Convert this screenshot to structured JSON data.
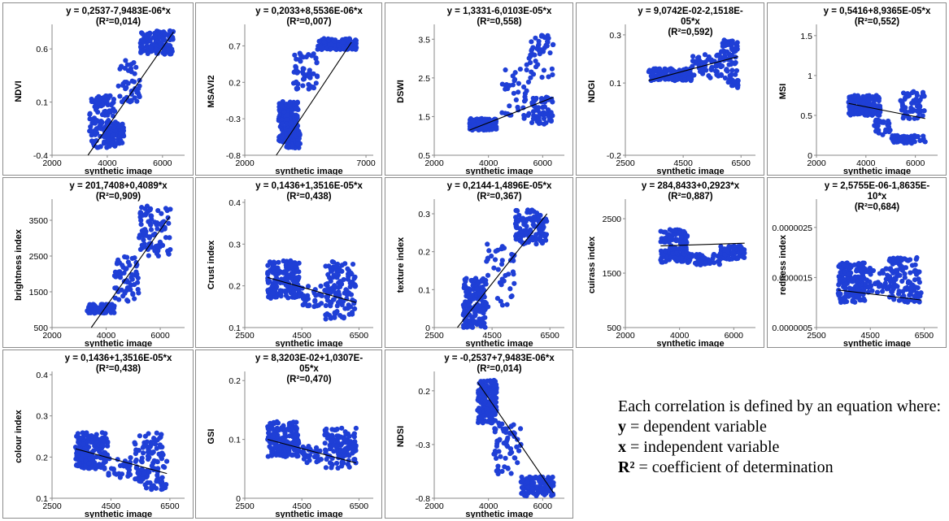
{
  "legend": {
    "intro": "Each correlation is defined by an equation where:",
    "items": [
      {
        "sym": "y",
        "text": " = dependent variable"
      },
      {
        "sym": "x",
        "text": " = independent variable"
      },
      {
        "sym": "R²",
        "text": " = coefficient of determination"
      }
    ]
  },
  "colors": {
    "points": "#1f3fd6",
    "line": "#000000",
    "border": "#8c8c8c"
  },
  "chart_data": [
    {
      "type": "scatter",
      "ylabel": "NDVI",
      "xlabel": "synthetic image",
      "equation": "y = 0,2537-7,9483E-06*x\n(R²=0,014)",
      "xticks": [
        2000,
        4000,
        6000
      ],
      "yticks": [
        -0.4,
        0.1,
        0.6
      ],
      "xlim": [
        2000,
        6800
      ],
      "ylim": [
        -0.4,
        0.8
      ],
      "fit": [
        [
          3300,
          -0.4
        ],
        [
          6400,
          0.76
        ]
      ],
      "clusters": [
        [
          3350,
          4300,
          -0.33,
          0.16,
          140
        ],
        [
          4000,
          4600,
          -0.3,
          -0.1,
          80
        ],
        [
          4400,
          5200,
          0.1,
          0.5,
          45
        ],
        [
          5200,
          6400,
          0.55,
          0.77,
          130
        ]
      ]
    },
    {
      "type": "scatter",
      "ylabel": "MSAVI2",
      "xlabel": "synthetic image",
      "equation": "y = 0,2033+8,5536E-06*x\n(R²=0,007)",
      "xticks": [
        2000,
        7000
      ],
      "yticks": [
        -0.8,
        -0.3,
        0.2,
        0.7
      ],
      "xlim": [
        2000,
        7300
      ],
      "ylim": [
        -0.8,
        0.95
      ],
      "fit": [
        [
          3300,
          -0.8
        ],
        [
          6400,
          0.75
        ]
      ],
      "clusters": [
        [
          3400,
          4200,
          -0.62,
          -0.05,
          170
        ],
        [
          3700,
          4300,
          -0.7,
          -0.45,
          60
        ],
        [
          4000,
          5000,
          0.1,
          0.6,
          55
        ],
        [
          5000,
          6600,
          0.65,
          0.8,
          130
        ]
      ]
    },
    {
      "type": "scatter",
      "ylabel": "DSWI",
      "xlabel": "synthetic image",
      "equation": "y = 1,3331-6,0103E-05*x\n(R²=0,558)",
      "xticks": [
        2000,
        4000,
        6000
      ],
      "yticks": [
        0.5,
        1.5,
        2.5,
        3.5
      ],
      "xlim": [
        2000,
        6800
      ],
      "ylim": [
        0.5,
        3.8
      ],
      "fit": [
        [
          3300,
          1.15
        ],
        [
          6400,
          2.0
        ]
      ],
      "clusters": [
        [
          3300,
          4300,
          1.15,
          1.45,
          170
        ],
        [
          4500,
          5600,
          1.4,
          2.9,
          40
        ],
        [
          5500,
          6400,
          2.5,
          3.6,
          45
        ],
        [
          5600,
          6400,
          1.3,
          2.0,
          60
        ]
      ]
    },
    {
      "type": "scatter",
      "ylabel": "NDGI",
      "xlabel": "synthetic image",
      "equation": "y = 9,0742E-02-2,1518E-\n05*x\n(R²=0,592)",
      "xticks": [
        2500,
        4500,
        6500
      ],
      "yticks": [
        -0.2,
        0.1,
        0.3
      ],
      "xlim": [
        2500,
        7000
      ],
      "ylim": [
        -0.2,
        0.33
      ],
      "fit": [
        [
          3300,
          0.11
        ],
        [
          6400,
          0.21
        ]
      ],
      "clusters": [
        [
          3300,
          4800,
          0.11,
          0.16,
          150
        ],
        [
          4800,
          5800,
          0.12,
          0.22,
          50
        ],
        [
          5800,
          6400,
          0.08,
          0.28,
          80
        ]
      ]
    },
    {
      "type": "scatter",
      "ylabel": "MSI",
      "xlabel": "synthetic image",
      "equation": "y = 0,5416+8,9365E-05*x\n(R²=0,552)",
      "xticks": [
        2000,
        4000,
        6000
      ],
      "yticks": [
        0,
        0.5,
        1,
        1.5
      ],
      "xlim": [
        2000,
        6900
      ],
      "ylim": [
        0,
        1.6
      ],
      "fit": [
        [
          3300,
          0.65
        ],
        [
          6400,
          0.46
        ]
      ],
      "clusters": [
        [
          3300,
          4600,
          0.5,
          0.75,
          150
        ],
        [
          4300,
          5000,
          0.25,
          0.45,
          25
        ],
        [
          5000,
          6400,
          0.15,
          0.25,
          50
        ],
        [
          5400,
          6400,
          0.45,
          0.8,
          60
        ]
      ]
    },
    {
      "type": "scatter",
      "ylabel": "brightness index",
      "xlabel": "synthetic image",
      "equation": "y = 201,7408+0,4089*x\n(R²=0,909)",
      "xticks": [
        2000,
        4000,
        6000
      ],
      "yticks": [
        500,
        1500,
        2500,
        3500
      ],
      "xlim": [
        2000,
        6900
      ],
      "ylim": [
        500,
        4000
      ],
      "fit": [
        [
          3450,
          500
        ],
        [
          6350,
          3600
        ]
      ],
      "clusters": [
        [
          3300,
          4300,
          900,
          1150,
          100
        ],
        [
          4300,
          5200,
          1200,
          2500,
          60
        ],
        [
          5200,
          6400,
          2500,
          3900,
          90
        ]
      ]
    },
    {
      "type": "scatter",
      "ylabel": "Crust index",
      "xlabel": "synthetic image",
      "equation": "y = 0,1436+1,3516E-05*x\n(R²=0,438)",
      "xticks": [
        2500,
        4500,
        6500
      ],
      "yticks": [
        0.1,
        0.2,
        0.3,
        0.4
      ],
      "xlim": [
        2500,
        7000
      ],
      "ylim": [
        0.1,
        0.4
      ],
      "fit": [
        [
          3300,
          0.22
        ],
        [
          6400,
          0.16
        ]
      ],
      "clusters": [
        [
          3300,
          4400,
          0.17,
          0.26,
          170
        ],
        [
          4400,
          5200,
          0.15,
          0.2,
          30
        ],
        [
          5300,
          6400,
          0.12,
          0.26,
          120
        ]
      ]
    },
    {
      "type": "scatter",
      "ylabel": "texture index",
      "xlabel": "synthetic image",
      "equation": "y = 0,2144-1,4896E-05*x\n(R²=0,367)",
      "xticks": [
        2500,
        4500,
        6500
      ],
      "yticks": [
        0,
        0.1,
        0.2,
        0.3
      ],
      "xlim": [
        2500,
        7000
      ],
      "ylim": [
        0,
        0.33
      ],
      "fit": [
        [
          3300,
          0
        ],
        [
          6400,
          0.3
        ]
      ],
      "clusters": [
        [
          3500,
          4300,
          0.0,
          0.13,
          160
        ],
        [
          4300,
          5300,
          0.05,
          0.22,
          40
        ],
        [
          5300,
          6400,
          0.22,
          0.31,
          110
        ]
      ]
    },
    {
      "type": "scatter",
      "ylabel": "cuirass index",
      "xlabel": "synthetic image",
      "equation": "y = 284,8433+0,2923*x\n(R²=0,887)",
      "xticks": [
        2000,
        4000,
        6000
      ],
      "yticks": [
        500,
        1500,
        2500
      ],
      "xlim": [
        2000,
        6800
      ],
      "ylim": [
        500,
        2800
      ],
      "fit": [
        [
          3300,
          2000
        ],
        [
          6400,
          2050
        ]
      ],
      "clusters": [
        [
          3300,
          4300,
          1700,
          2300,
          140
        ],
        [
          4300,
          5500,
          1650,
          1850,
          50
        ],
        [
          5500,
          6400,
          1750,
          2000,
          80
        ]
      ]
    },
    {
      "type": "scatter",
      "ylabel": "redness index",
      "xlabel": "synthetic image",
      "equation": "y = 2,5755E-06-1,8635E-\n10*x\n(R²=0,684)",
      "xticks": [
        2500,
        4500,
        6500
      ],
      "yticks": [
        "0.0000005",
        "0.0000015",
        "0.0000025"
      ],
      "xlim": [
        2500,
        7000
      ],
      "ylim": [
        5e-07,
        3e-06
      ],
      "fit": [
        [
          3300,
          1.25e-06
        ],
        [
          6400,
          1.05e-06
        ]
      ],
      "clusters": [
        [
          3300,
          4300,
          1e-06,
          1.8e-06,
          150
        ],
        [
          4300,
          5400,
          1.2e-06,
          1.7e-06,
          50
        ],
        [
          5200,
          6400,
          1e-06,
          1.9e-06,
          110
        ]
      ]
    },
    {
      "type": "scatter",
      "ylabel": "colour index",
      "xlabel": "synthetic image",
      "equation": "y = 0,1436+1,3516E-05*x\n(R²=0,438)",
      "xticks": [
        2500,
        4500,
        6500
      ],
      "yticks": [
        0.1,
        0.2,
        0.3,
        0.4
      ],
      "xlim": [
        2500,
        7000
      ],
      "ylim": [
        0.1,
        0.4
      ],
      "fit": [
        [
          3300,
          0.22
        ],
        [
          6400,
          0.16
        ]
      ],
      "clusters": [
        [
          3300,
          4400,
          0.17,
          0.26,
          170
        ],
        [
          4400,
          5200,
          0.15,
          0.2,
          30
        ],
        [
          5300,
          6400,
          0.12,
          0.26,
          120
        ]
      ]
    },
    {
      "type": "scatter",
      "ylabel": "GSI",
      "xlabel": "synthetic image",
      "equation": "y = 8,3203E-02+1,0307E-\n05*x\n(R²=0,470)",
      "xticks": [
        2500,
        4500,
        6500
      ],
      "yticks": [
        0,
        0.1,
        0.2
      ],
      "xlim": [
        2500,
        7000
      ],
      "ylim": [
        0,
        0.21
      ],
      "fit": [
        [
          3300,
          0.1
        ],
        [
          6400,
          0.06
        ]
      ],
      "clusters": [
        [
          3300,
          4400,
          0.07,
          0.13,
          170
        ],
        [
          4400,
          5200,
          0.06,
          0.09,
          30
        ],
        [
          5300,
          6400,
          0.05,
          0.12,
          120
        ]
      ]
    },
    {
      "type": "scatter",
      "ylabel": "NDSI",
      "xlabel": "synthetic image",
      "equation": "y = -0,2537+7,9483E-06*x\n(R²=0,014)",
      "xticks": [
        2000,
        4000,
        6000
      ],
      "yticks": [
        -0.8,
        -0.3,
        0.2
      ],
      "xlim": [
        2000,
        6800
      ],
      "ylim": [
        -0.8,
        0.35
      ],
      "fit": [
        [
          3600,
          0.28
        ],
        [
          6400,
          -0.75
        ]
      ],
      "clusters": [
        [
          3600,
          4300,
          -0.1,
          0.3,
          160
        ],
        [
          4200,
          5200,
          -0.6,
          -0.1,
          60
        ],
        [
          5200,
          6400,
          -0.78,
          -0.6,
          120
        ]
      ]
    }
  ]
}
